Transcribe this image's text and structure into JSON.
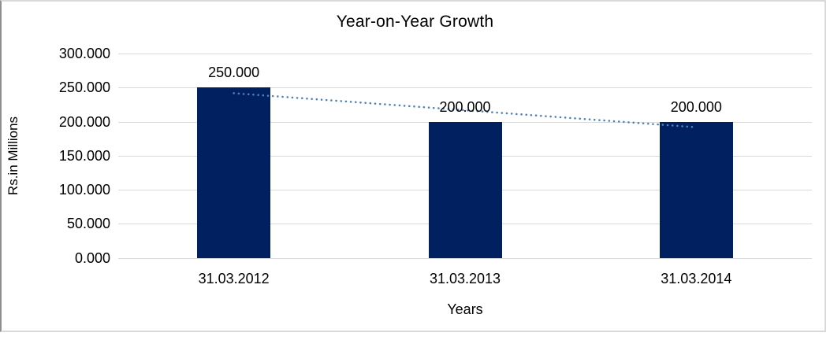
{
  "chart_data": {
    "type": "bar",
    "title": "Year-on-Year Growth",
    "xlabel": "Years",
    "ylabel": "Rs.in Millions",
    "categories": [
      "31.03.2012",
      "31.03.2013",
      "31.03.2014"
    ],
    "values": [
      250,
      200,
      200
    ],
    "value_labels": [
      "250.000",
      "200.000",
      "200.000"
    ],
    "y_ticks": [
      {
        "value": 300,
        "label": "300.000"
      },
      {
        "value": 250,
        "label": "250.000"
      },
      {
        "value": 200,
        "label": "200.000"
      },
      {
        "value": 150,
        "label": "150.000"
      },
      {
        "value": 100,
        "label": "100.000"
      },
      {
        "value": 50,
        "label": "50.000"
      },
      {
        "value": 0,
        "label": "0.000"
      }
    ],
    "ylim": [
      0,
      300
    ],
    "grid": true,
    "legend": "none",
    "bar_color": "#002060",
    "gridline_color": "#d9d9d9",
    "trendline": {
      "type": "linear",
      "style": "dotted",
      "color": "#4f81bd",
      "fit_start_value": 241.67,
      "fit_end_value": 191.67
    }
  }
}
